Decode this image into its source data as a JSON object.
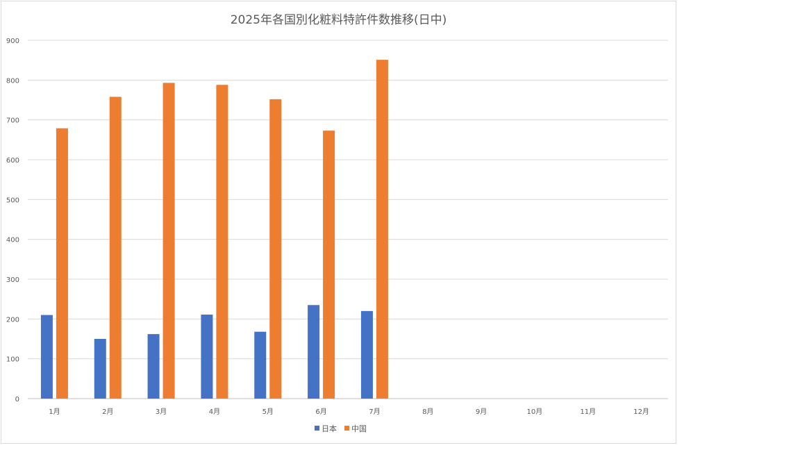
{
  "chart_data": {
    "type": "bar",
    "title": "2025年各国別化粧料特許件数推移(日中)",
    "xlabel": "",
    "ylabel": "",
    "categories": [
      "1月",
      "2月",
      "3月",
      "4月",
      "5月",
      "6月",
      "7月",
      "8月",
      "9月",
      "10月",
      "11月",
      "12月"
    ],
    "series": [
      {
        "name": "日本",
        "color": "#4472c4",
        "values": [
          210,
          150,
          162,
          211,
          168,
          235,
          220,
          null,
          null,
          null,
          null,
          null
        ]
      },
      {
        "name": "中国",
        "color": "#ed7d31",
        "values": [
          679,
          758,
          793,
          788,
          752,
          673,
          851,
          null,
          null,
          null,
          null,
          null
        ]
      }
    ],
    "ylim": [
      0,
      900
    ],
    "yticks": [
      0,
      100,
      200,
      300,
      400,
      500,
      600,
      700,
      800,
      900
    ],
    "grid": true,
    "legend_position": "bottom"
  }
}
